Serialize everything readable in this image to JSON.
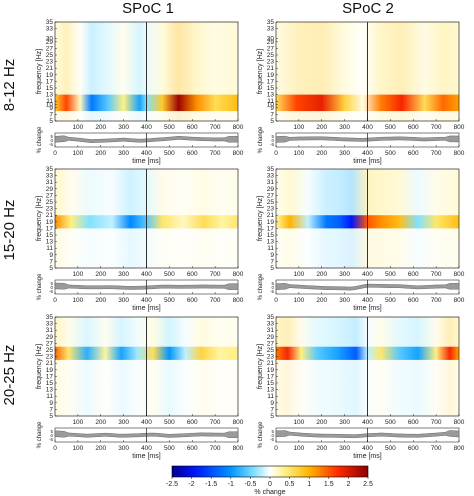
{
  "figure": {
    "columns": [
      "SPoC 1",
      "SPoC 2"
    ],
    "rows": [
      "8-12 Hz",
      "15-20 Hz",
      "20-25 Hz"
    ],
    "freq_ylabel": "frequency [Hz]",
    "change_ylabel": "% change",
    "xlabel": "time [ms]",
    "colorbar_label": "% change",
    "colorbar_ticks": [
      "-2.5",
      "-2",
      "-1.5",
      "-1",
      "-0.5",
      "0",
      "0.5",
      "1",
      "1.5",
      "2",
      "2.5"
    ],
    "freq_ticks": [
      "35",
      "33",
      "31",
      "29",
      "27",
      "25",
      "23",
      "21",
      "19",
      "17",
      "15",
      "13",
      "11",
      "9",
      "7",
      "5"
    ],
    "freq_ticks_row1": [
      "35",
      "33",
      "30",
      "29",
      "27",
      "25",
      "23",
      "21",
      "19",
      "17",
      "15",
      "13",
      "11",
      "10",
      "9",
      "7",
      "5"
    ],
    "time_ticks": [
      "100",
      "200",
      "300",
      "400",
      "500",
      "600",
      "700",
      "800"
    ],
    "time_ticks_lower": [
      "0",
      "100",
      "200",
      "300",
      "400",
      "500",
      "600",
      "700",
      "800"
    ],
    "small_ticks": [
      "5",
      "0",
      "-5"
    ]
  },
  "chart_data": [
    {
      "type": "heatmap",
      "title": "SPoC 1 · 8-12 Hz",
      "xlabel": "time [ms]",
      "ylabel": "frequency [Hz]",
      "xlim": [
        0,
        800
      ],
      "ylim": [
        5,
        35
      ],
      "band_hz": [
        8,
        13
      ],
      "event_ms": 400,
      "band_profile": [
        [
          0,
          0.8
        ],
        [
          50,
          1.6
        ],
        [
          110,
          0.2
        ],
        [
          160,
          -1.2
        ],
        [
          230,
          -0.6
        ],
        [
          300,
          0.4
        ],
        [
          370,
          -0.9
        ],
        [
          400,
          -0.4
        ],
        [
          470,
          0.8
        ],
        [
          540,
          2.4
        ],
        [
          620,
          1.2
        ],
        [
          700,
          0.6
        ],
        [
          800,
          0.9
        ]
      ]
    },
    {
      "type": "heatmap",
      "title": "SPoC 2 · 8-12 Hz",
      "xlabel": "time [ms]",
      "ylabel": "frequency [Hz]",
      "xlim": [
        0,
        800
      ],
      "ylim": [
        5,
        35
      ],
      "band_hz": [
        8,
        13
      ],
      "event_ms": 400,
      "band_profile": [
        [
          0,
          0.6
        ],
        [
          90,
          1.6
        ],
        [
          200,
          1.9
        ],
        [
          300,
          0.7
        ],
        [
          380,
          0.1
        ],
        [
          460,
          1.3
        ],
        [
          550,
          1.8
        ],
        [
          650,
          0.6
        ],
        [
          730,
          1.4
        ],
        [
          800,
          1.1
        ]
      ]
    },
    {
      "type": "heatmap",
      "title": "SPoC 1 · 15-20 Hz",
      "xlabel": "time [ms]",
      "ylabel": "frequency [Hz]",
      "xlim": [
        0,
        800
      ],
      "ylim": [
        5,
        35
      ],
      "band_hz": [
        17,
        21
      ],
      "event_ms": 400,
      "band_profile": [
        [
          0,
          1.2
        ],
        [
          70,
          0.4
        ],
        [
          150,
          -0.4
        ],
        [
          250,
          -0.2
        ],
        [
          330,
          -1.1
        ],
        [
          400,
          -0.6
        ],
        [
          470,
          0.5
        ],
        [
          560,
          0.2
        ],
        [
          650,
          0.6
        ],
        [
          730,
          0.3
        ],
        [
          800,
          0.5
        ]
      ]
    },
    {
      "type": "heatmap",
      "title": "SPoC 2 · 15-20 Hz",
      "xlabel": "time [ms]",
      "ylabel": "frequency [Hz]",
      "xlim": [
        0,
        800
      ],
      "ylim": [
        5,
        35
      ],
      "band_hz": [
        17,
        21
      ],
      "event_ms": 400,
      "band_profile": [
        [
          0,
          0.3
        ],
        [
          60,
          1.0
        ],
        [
          140,
          -0.2
        ],
        [
          220,
          -1.2
        ],
        [
          280,
          -1.4
        ],
        [
          330,
          -1.9
        ],
        [
          400,
          1.5
        ],
        [
          460,
          1.2
        ],
        [
          540,
          0.9
        ],
        [
          620,
          -0.4
        ],
        [
          700,
          0.5
        ],
        [
          800,
          0.9
        ]
      ]
    },
    {
      "type": "heatmap",
      "title": "SPoC 1 · 20-25 Hz",
      "xlabel": "time [ms]",
      "ylabel": "frequency [Hz]",
      "xlim": [
        0,
        800
      ],
      "ylim": [
        5,
        35
      ],
      "band_hz": [
        22,
        26
      ],
      "event_ms": 400,
      "band_profile": [
        [
          0,
          1.4
        ],
        [
          60,
          0.5
        ],
        [
          140,
          -0.8
        ],
        [
          220,
          0.3
        ],
        [
          290,
          -0.9
        ],
        [
          360,
          -0.3
        ],
        [
          430,
          0.6
        ],
        [
          500,
          -1.0
        ],
        [
          570,
          -0.2
        ],
        [
          640,
          0.7
        ],
        [
          720,
          0.3
        ],
        [
          800,
          0.4
        ]
      ]
    },
    {
      "type": "heatmap",
      "title": "SPoC 2 · 20-25 Hz",
      "xlabel": "time [ms]",
      "ylabel": "frequency [Hz]",
      "xlim": [
        0,
        800
      ],
      "ylim": [
        5,
        35
      ],
      "band_hz": [
        22,
        26
      ],
      "event_ms": 400,
      "band_profile": [
        [
          0,
          1.3
        ],
        [
          50,
          1.8
        ],
        [
          110,
          0.4
        ],
        [
          180,
          -0.6
        ],
        [
          270,
          -0.9
        ],
        [
          350,
          -1.4
        ],
        [
          400,
          -0.2
        ],
        [
          460,
          0.5
        ],
        [
          540,
          -0.6
        ],
        [
          620,
          -0.9
        ],
        [
          700,
          0.4
        ],
        [
          760,
          1.8
        ],
        [
          800,
          1.1
        ]
      ]
    }
  ]
}
